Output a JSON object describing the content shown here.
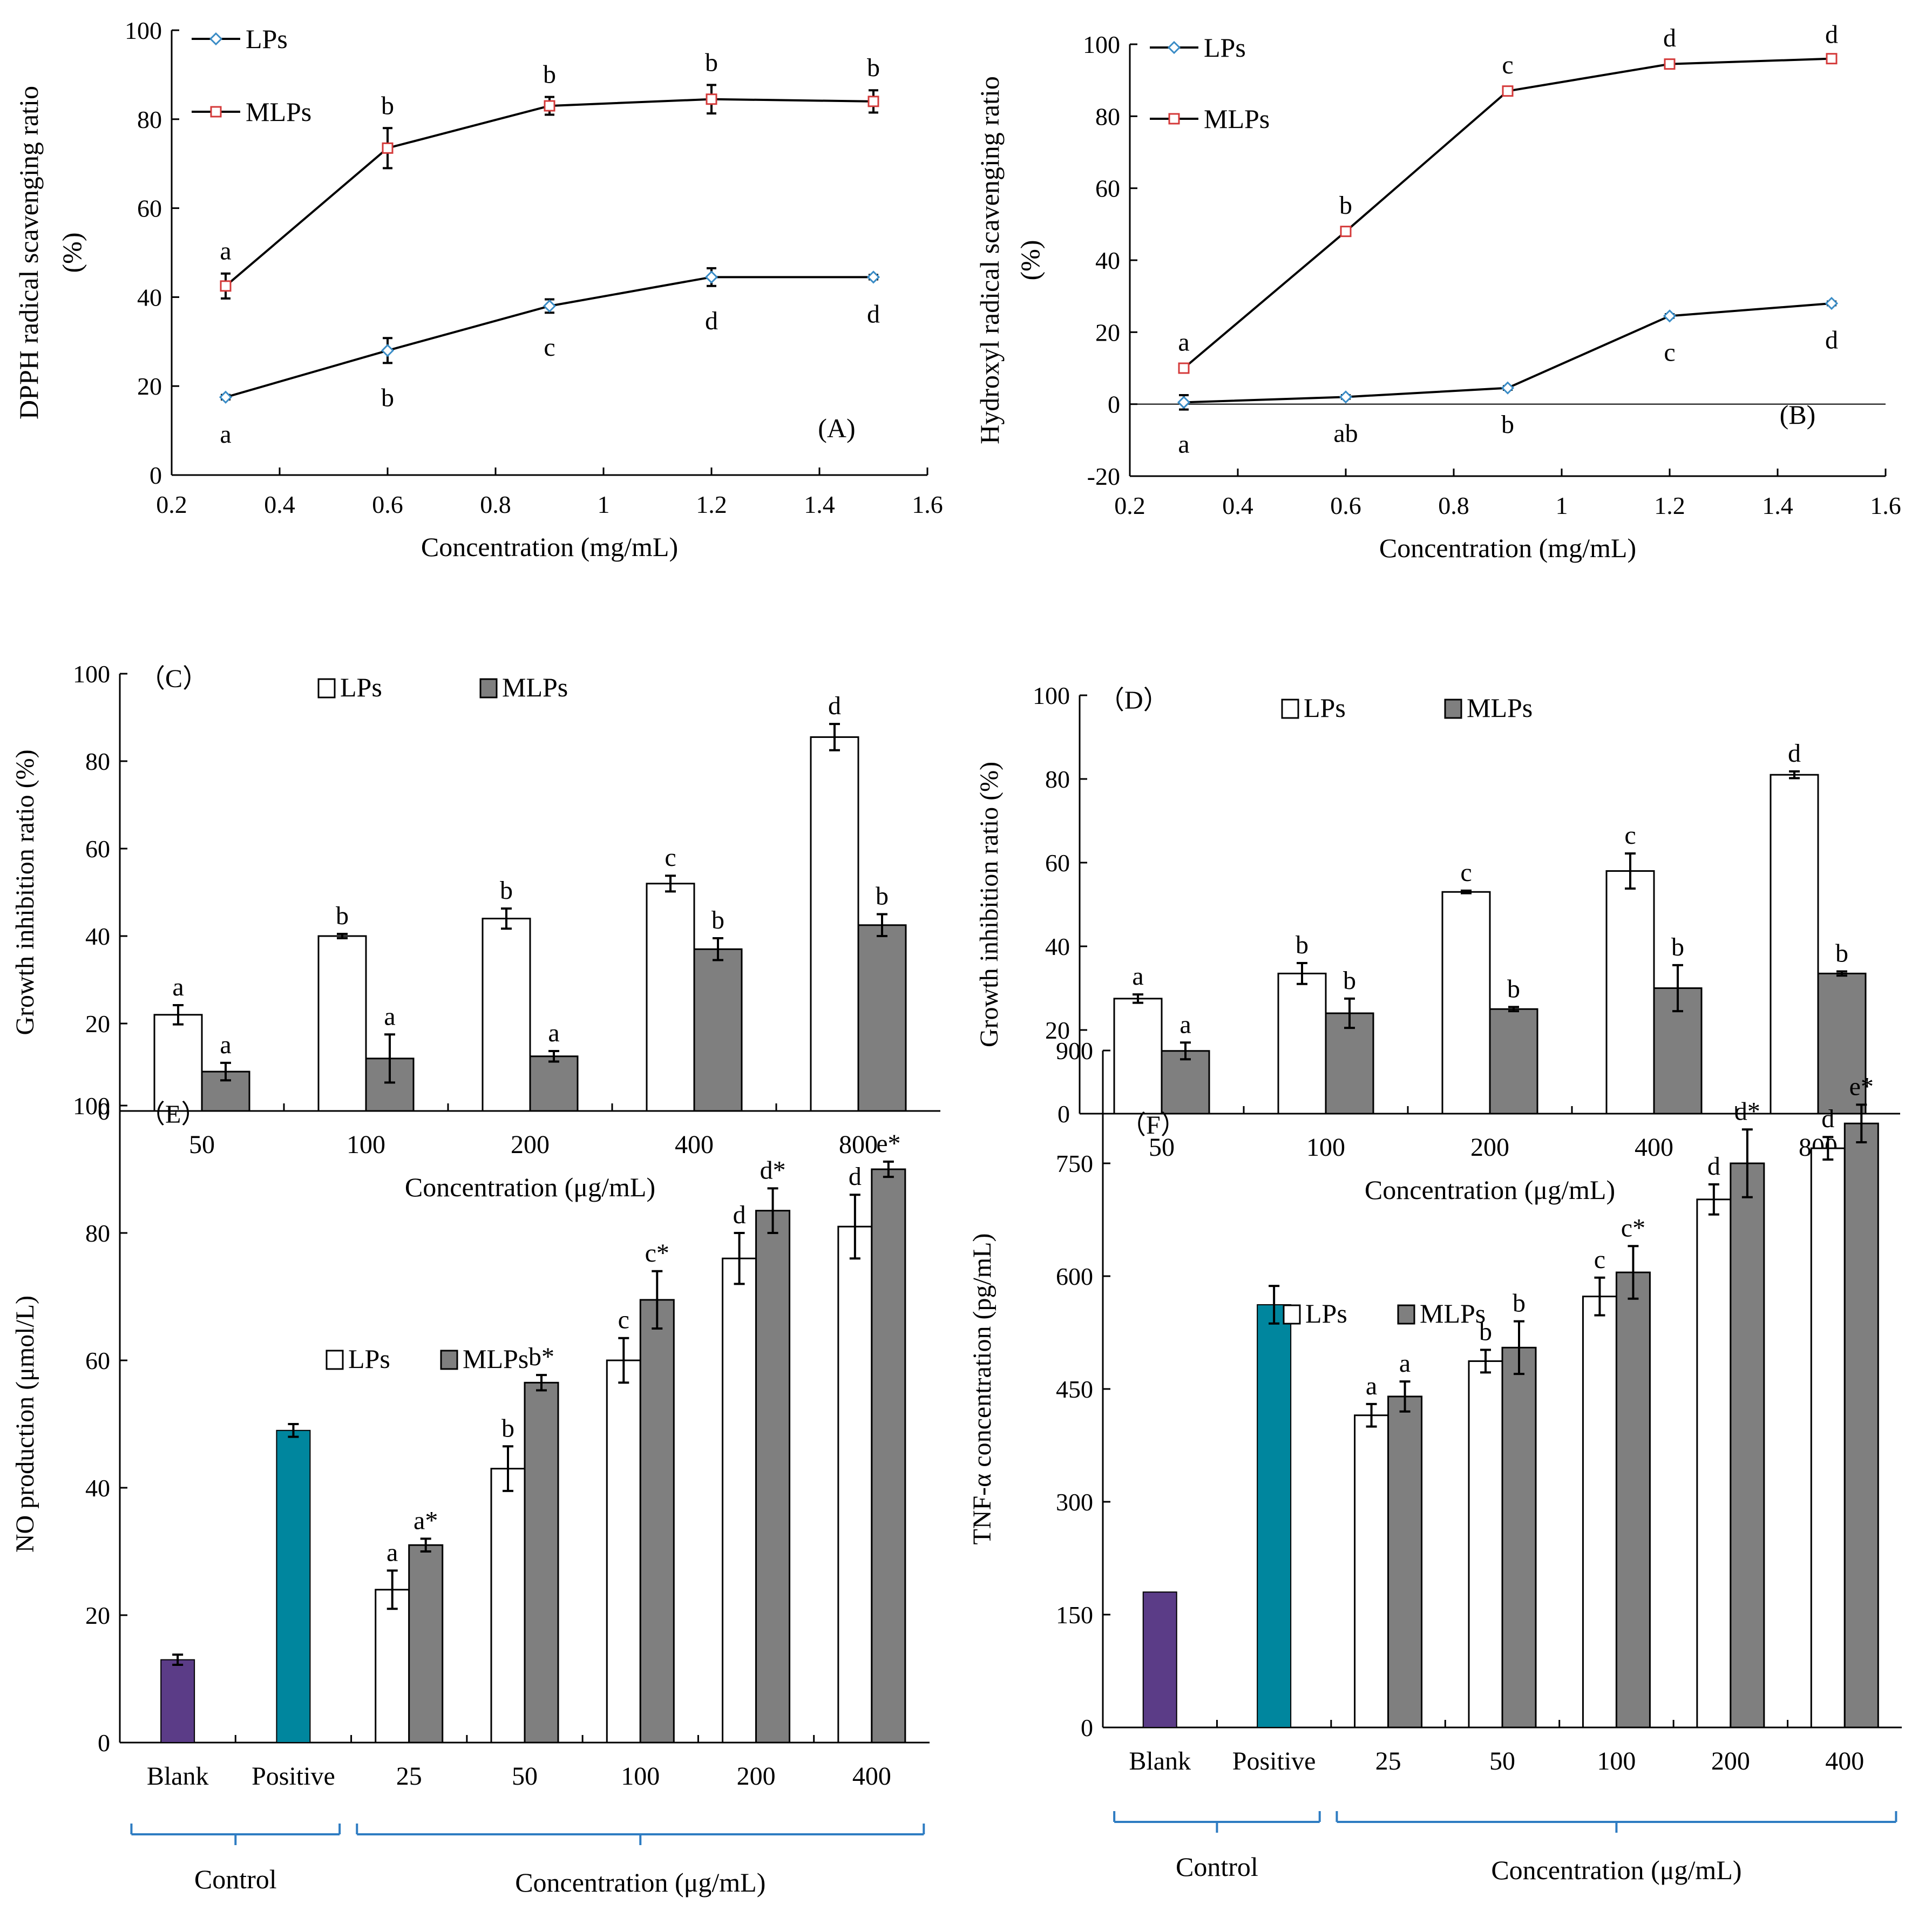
{
  "chart_data": [
    {
      "id": "A",
      "type": "line",
      "panel_label": "(A)",
      "xlabel": "Concentration (mg/mL)",
      "ylabel_line1": "DPPH radical scavenging ratio",
      "ylabel_line2": "(%)",
      "xlim": [
        0.2,
        1.6
      ],
      "ylim": [
        0,
        100
      ],
      "x_ticks": [
        "0.2",
        "0.4",
        "0.6",
        "0.8",
        "1",
        "1.2",
        "1.4",
        "1.6"
      ],
      "y_ticks": [
        "0",
        "20",
        "40",
        "60",
        "80",
        "100"
      ],
      "legend": [
        "LPs",
        "MLPs"
      ],
      "x": [
        0.3,
        0.6,
        0.9,
        1.2,
        1.5
      ],
      "series": [
        {
          "name": "LPs",
          "values": [
            17.5,
            28,
            38,
            44.5,
            44.5
          ],
          "errors": [
            0.5,
            2.8,
            1.5,
            2,
            0.5
          ],
          "letters": [
            "a",
            "b",
            "c",
            "d",
            "d"
          ],
          "letter_pos": "below"
        },
        {
          "name": "MLPs",
          "values": [
            42.5,
            73.5,
            83,
            84.5,
            84
          ],
          "errors": [
            2.8,
            4.5,
            2,
            3.2,
            2.5
          ],
          "letters": [
            "a",
            "b",
            "b",
            "b",
            "b"
          ],
          "letter_pos": "above"
        }
      ]
    },
    {
      "id": "B",
      "type": "line",
      "panel_label": "(B)",
      "xlabel": "Concentration (mg/mL)",
      "ylabel_line1": "Hydroxyl radical scavenging ratio",
      "ylabel_line2": "(%)",
      "xlim": [
        0.2,
        1.6
      ],
      "ylim": [
        -20,
        100
      ],
      "x_ticks": [
        "0.2",
        "0.4",
        "0.6",
        "0.8",
        "1",
        "1.2",
        "1.4",
        "1.6"
      ],
      "y_ticks": [
        "-20",
        "0",
        "20",
        "40",
        "60",
        "80",
        "100"
      ],
      "legend": [
        "LPs",
        "MLPs"
      ],
      "x": [
        0.3,
        0.6,
        0.9,
        1.2,
        1.5
      ],
      "series": [
        {
          "name": "LPs",
          "values": [
            0.5,
            2,
            4.5,
            24.5,
            28
          ],
          "errors": [
            2,
            0.5,
            0.5,
            0.5,
            0.5
          ],
          "letters": [
            "a",
            "ab",
            "b",
            "c",
            "d"
          ],
          "letter_pos": "below"
        },
        {
          "name": "MLPs",
          "values": [
            10,
            48,
            87,
            94.5,
            96
          ],
          "errors": [
            1,
            1,
            1,
            1,
            0.5
          ],
          "letters": [
            "a",
            "b",
            "c",
            "d",
            "d"
          ],
          "letter_pos": "above"
        }
      ]
    },
    {
      "id": "C",
      "type": "bar",
      "panel_label": "（C）",
      "xlabel": "Concentration (μg/mL)",
      "ylabel": "Growth inhibition ratio (%)",
      "ylim": [
        0,
        100
      ],
      "y_ticks": [
        "0",
        "20",
        "40",
        "60",
        "80",
        "100"
      ],
      "categories": [
        "50",
        "100",
        "200",
        "400",
        "800"
      ],
      "legend": [
        "LPs",
        "MLPs"
      ],
      "series": [
        {
          "name": "LPs",
          "values": [
            22,
            40,
            44,
            52,
            85.5
          ],
          "errors": [
            2.2,
            0.5,
            2.3,
            1.8,
            3
          ],
          "letters": [
            "a",
            "b",
            "b",
            "c",
            "d"
          ]
        },
        {
          "name": "MLPs",
          "values": [
            9,
            12,
            12.5,
            37,
            42.5
          ],
          "errors": [
            2,
            5.5,
            1.2,
            2.5,
            2.5
          ],
          "letters": [
            "a",
            "a",
            "a",
            "b",
            "b"
          ]
        }
      ]
    },
    {
      "id": "D",
      "type": "bar",
      "panel_label": "（D）",
      "xlabel": "Concentration (μg/mL)",
      "ylabel": "Growth inhibition ratio (%)",
      "ylim": [
        0,
        100
      ],
      "y_ticks": [
        "0",
        "20",
        "40",
        "60",
        "80",
        "100"
      ],
      "categories": [
        "50",
        "100",
        "200",
        "400",
        "800"
      ],
      "legend": [
        "LPs",
        "MLPs"
      ],
      "series": [
        {
          "name": "LPs",
          "values": [
            27.5,
            33.5,
            53,
            58,
            81
          ],
          "errors": [
            1,
            2.5,
            0.3,
            4.2,
            0.8
          ],
          "letters": [
            "a",
            "b",
            "c",
            "c",
            "d"
          ]
        },
        {
          "name": "MLPs",
          "values": [
            15,
            24,
            25,
            30,
            33.5
          ],
          "errors": [
            2,
            3.5,
            0.5,
            5.5,
            0.5
          ],
          "letters": [
            "a",
            "b",
            "b",
            "b",
            "b"
          ]
        }
      ]
    },
    {
      "id": "E",
      "type": "bar",
      "panel_label": "（E）",
      "xlabel": "Concentration (μg/mL)",
      "ylabel": "NO production (μmol/L)",
      "ylim": [
        0,
        100
      ],
      "y_ticks": [
        "0",
        "20",
        "40",
        "60",
        "80",
        "100"
      ],
      "legend": [
        "LPs",
        "MLPs"
      ],
      "control_label": "Control",
      "controls": [
        {
          "name": "Blank",
          "value": 13,
          "error": 0.8,
          "color": "#5b3c87"
        },
        {
          "name": "Positive",
          "value": 49,
          "error": 1,
          "color": "#00869e"
        }
      ],
      "categories": [
        "25",
        "50",
        "100",
        "200",
        "400"
      ],
      "series": [
        {
          "name": "LPs",
          "values": [
            24,
            43,
            60,
            76,
            81
          ],
          "errors": [
            3,
            3.5,
            3.5,
            4,
            5
          ],
          "letters": [
            "a",
            "b",
            "c",
            "d",
            "d"
          ]
        },
        {
          "name": "MLPs",
          "values": [
            31,
            56.5,
            69.5,
            83.5,
            90
          ],
          "errors": [
            1,
            1.2,
            4.5,
            3.5,
            1.2
          ],
          "letters": [
            "a*",
            "b*",
            "c*",
            "d*",
            "e*"
          ]
        }
      ]
    },
    {
      "id": "F",
      "type": "bar",
      "panel_label": "（F）",
      "xlabel": "Concentration (μg/mL)",
      "ylabel": "TNF-α concentration (pg/mL)",
      "ylim": [
        0,
        900
      ],
      "y_ticks": [
        "0",
        "150",
        "300",
        "450",
        "600",
        "750",
        "900"
      ],
      "legend": [
        "LPs",
        "MLPs"
      ],
      "control_label": "Control",
      "controls": [
        {
          "name": "Blank",
          "value": 180,
          "error": 0,
          "color": "#5b3c87"
        },
        {
          "name": "Positive",
          "value": 562,
          "error": 25,
          "color": "#00869e"
        }
      ],
      "categories": [
        "25",
        "50",
        "100",
        "200",
        "400"
      ],
      "series": [
        {
          "name": "LPs",
          "values": [
            415,
            487,
            573,
            702,
            770
          ],
          "errors": [
            15,
            15,
            25,
            20,
            15
          ],
          "letters": [
            "a",
            "b",
            "c",
            "d",
            "d"
          ]
        },
        {
          "name": "MLPs",
          "values": [
            440,
            505,
            605,
            750,
            803
          ],
          "errors": [
            20,
            35,
            35,
            45,
            25
          ],
          "letters": [
            "a",
            "b",
            "c*",
            "d*",
            "e*"
          ]
        }
      ]
    }
  ],
  "colors": {
    "lps_line": "#3a8cc6",
    "mlps_line": "#d43a3a",
    "mlps_bar": "#7f7f7f",
    "bracket": "#2e7cc2"
  }
}
